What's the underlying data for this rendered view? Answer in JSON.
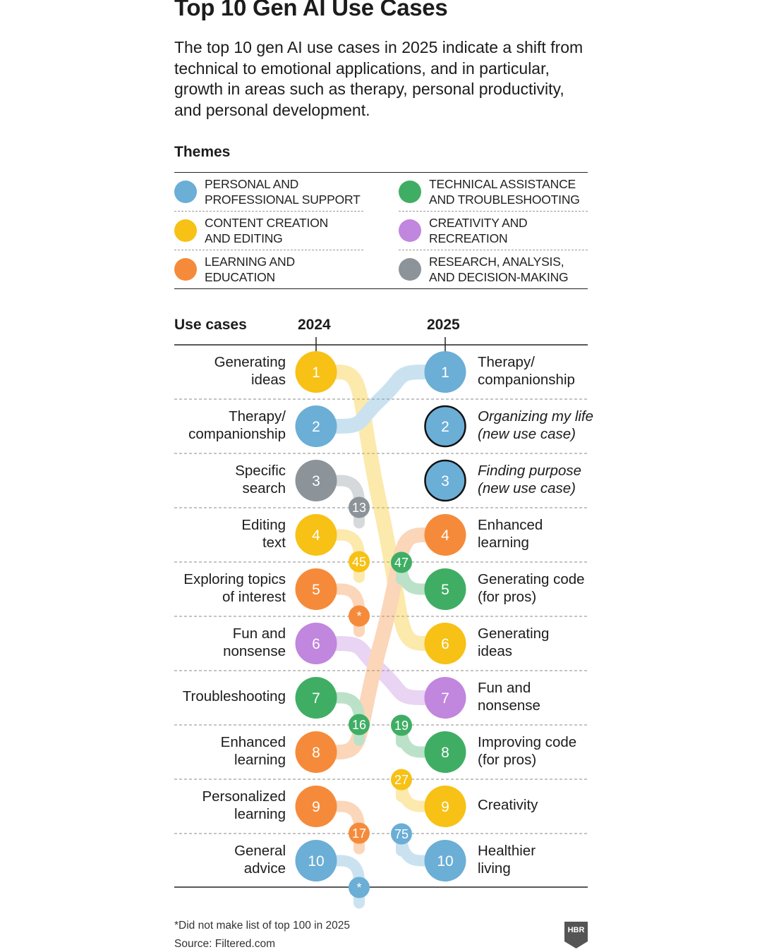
{
  "title": "Top 10 Gen AI Use Cases",
  "subtitle": "The top 10 gen AI use cases in 2025 indicate a shift from technical to emotional applications, and in particular, growth in areas such as therapy, personal productivity, and personal development.",
  "themes": {
    "heading": "Themes",
    "items": [
      {
        "key": "personal",
        "line1": "PERSONAL AND",
        "line2": "PROFESSIONAL SUPPORT",
        "color": "#6BAED6"
      },
      {
        "key": "technical",
        "line1": "TECHNICAL ASSISTANCE",
        "line2": "AND TROUBLESHOOTING",
        "color": "#3FAE64"
      },
      {
        "key": "content",
        "line1": "CONTENT CREATION",
        "line2": "AND EDITING",
        "color": "#F7C115"
      },
      {
        "key": "creativity",
        "line1": "CREATIVITY AND",
        "line2": "RECREATION",
        "color": "#C186DD"
      },
      {
        "key": "learning",
        "line1": "LEARNING AND",
        "line2": "EDUCATION",
        "color": "#F58B3A"
      },
      {
        "key": "research",
        "line1": "RESEARCH, ANALYSIS,",
        "line2": "AND DECISION-MAKING",
        "color": "#8C9399"
      }
    ]
  },
  "columns": {
    "use_cases": "Use cases",
    "year_left": "2024",
    "year_right": "2025"
  },
  "chart_data": {
    "type": "slope",
    "title": "Top 10 Gen AI Use Cases",
    "years": [
      "2024",
      "2025"
    ],
    "left": [
      {
        "rank": "1",
        "line1": "Generating",
        "line2": "ideas",
        "theme": "content",
        "to_2025": "6",
        "to_2025_label": ""
      },
      {
        "rank": "2",
        "line1": "Therapy/",
        "line2": "companionship",
        "theme": "personal",
        "to_2025": "1",
        "to_2025_label": ""
      },
      {
        "rank": "3",
        "line1": "Specific",
        "line2": "search",
        "theme": "research",
        "to_2025": "13",
        "to_2025_label": "13"
      },
      {
        "rank": "4",
        "line1": "Editing",
        "line2": "text",
        "theme": "content",
        "to_2025": "45",
        "to_2025_label": "45"
      },
      {
        "rank": "5",
        "line1": "Exploring topics",
        "line2": "of interest",
        "theme": "learning",
        "to_2025": "*",
        "to_2025_label": "*"
      },
      {
        "rank": "6",
        "line1": "Fun and",
        "line2": "nonsense",
        "theme": "creativity",
        "to_2025": "7",
        "to_2025_label": ""
      },
      {
        "rank": "7",
        "line1": "Troubleshooting",
        "line2": "",
        "theme": "technical",
        "to_2025": "16",
        "to_2025_label": "16"
      },
      {
        "rank": "8",
        "line1": "Enhanced",
        "line2": "learning",
        "theme": "learning",
        "to_2025": "4",
        "to_2025_label": ""
      },
      {
        "rank": "9",
        "line1": "Personalized",
        "line2": "learning",
        "theme": "learning",
        "to_2025": "17",
        "to_2025_label": "17"
      },
      {
        "rank": "10",
        "line1": "General",
        "line2": "advice",
        "theme": "personal",
        "to_2025": "*",
        "to_2025_label": "*"
      }
    ],
    "right": [
      {
        "rank": "1",
        "line1": "Therapy/",
        "line2": "companionship",
        "theme": "personal",
        "new": false,
        "from_2024": "2",
        "from_2024_label": ""
      },
      {
        "rank": "2",
        "line1": "Organizing my life",
        "line2": "(new use case)",
        "theme": "personal",
        "new": true,
        "from_2024": "",
        "from_2024_label": ""
      },
      {
        "rank": "3",
        "line1": "Finding purpose",
        "line2": "(new use case)",
        "theme": "personal",
        "new": true,
        "from_2024": "",
        "from_2024_label": ""
      },
      {
        "rank": "4",
        "line1": "Enhanced",
        "line2": "learning",
        "theme": "learning",
        "new": false,
        "from_2024": "8",
        "from_2024_label": ""
      },
      {
        "rank": "5",
        "line1": "Generating code",
        "line2": "(for pros)",
        "theme": "technical",
        "new": false,
        "from_2024": "47",
        "from_2024_label": "47"
      },
      {
        "rank": "6",
        "line1": "Generating",
        "line2": "ideas",
        "theme": "content",
        "new": false,
        "from_2024": "1",
        "from_2024_label": ""
      },
      {
        "rank": "7",
        "line1": "Fun and",
        "line2": "nonsense",
        "theme": "creativity",
        "new": false,
        "from_2024": "6",
        "from_2024_label": ""
      },
      {
        "rank": "8",
        "line1": "Improving code",
        "line2": "(for pros)",
        "theme": "technical",
        "new": false,
        "from_2024": "19",
        "from_2024_label": "19"
      },
      {
        "rank": "9",
        "line1": "Creativity",
        "line2": "",
        "theme": "content",
        "new": false,
        "from_2024": "27",
        "from_2024_label": "27"
      },
      {
        "rank": "10",
        "line1": "Healthier",
        "line2": "living",
        "theme": "personal",
        "new": false,
        "from_2024": "75",
        "from_2024_label": "75"
      }
    ]
  },
  "footnote": "*Did not make list of top 100 in 2025",
  "source": "Source: Filtered.com",
  "logo": "HBR"
}
